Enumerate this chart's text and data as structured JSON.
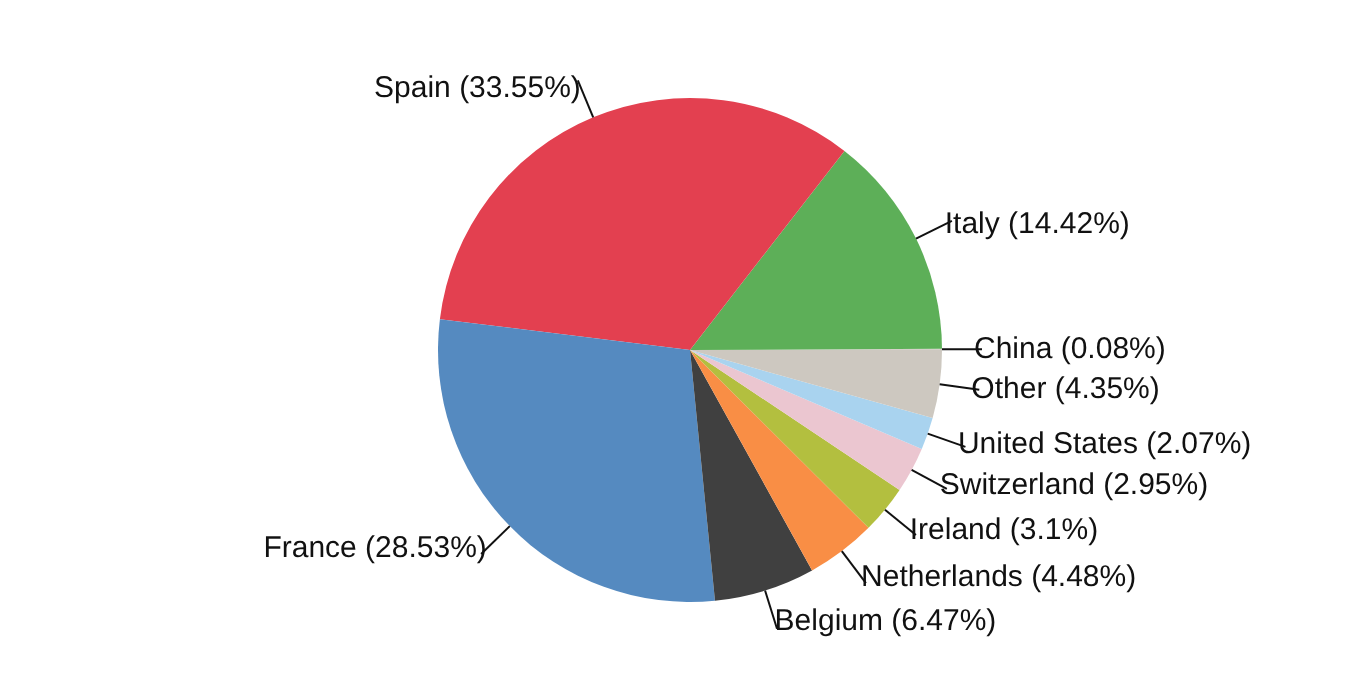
{
  "chart_data": {
    "type": "pie",
    "categories": [
      "China",
      "Italy",
      "Spain",
      "France",
      "Belgium",
      "Netherlands",
      "Ireland",
      "Switzerland",
      "United States",
      "Other"
    ],
    "values": [
      0.08,
      14.42,
      33.55,
      28.53,
      6.47,
      4.48,
      3.1,
      2.95,
      2.07,
      4.35
    ],
    "value_labels": [
      "(0.08%)",
      "(14.42%)",
      "(33.55%)",
      "(28.53%)",
      "(6.47%)",
      "(4.48%)",
      "(3.1%)",
      "(2.95%)",
      "(2.07%)",
      "(4.35%)"
    ],
    "colors": [
      "#d6d1ca",
      "#5daf58",
      "#e34050",
      "#558ac0",
      "#404040",
      "#f98e45",
      "#b3bf3f",
      "#ebc6d0",
      "#a9d3ef",
      "#cdc8c0"
    ],
    "legend": false
  }
}
